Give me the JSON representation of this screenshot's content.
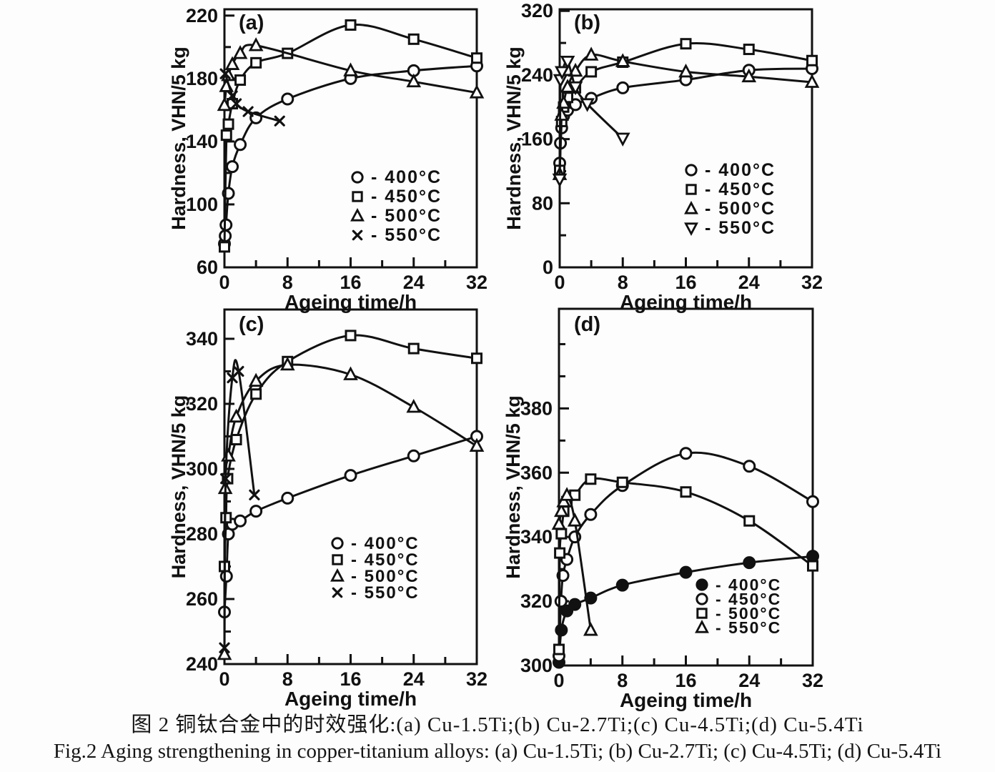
{
  "figure": {
    "caption_zh": "图 2  铜钛合金中的时效强化:(a) Cu-1.5Ti;(b) Cu-2.7Ti;(c) Cu-4.5Ti;(d) Cu-5.4Ti",
    "caption_en": "Fig.2 Aging strengthening in copper-titanium alloys: (a) Cu-1.5Ti; (b) Cu-2.7Ti; (c) Cu-4.5Ti; (d) Cu-5.4Ti"
  },
  "colors": {
    "ink": "#111111",
    "paper": "#fdfdfd"
  },
  "chart_data": [
    {
      "type": "line",
      "panel_letter": "(a)",
      "alloy": "Cu-1.5Ti",
      "xlabel": "Ageing time/h",
      "ylabel": "Hardness, VHN/5 kg",
      "xlim": [
        0,
        32
      ],
      "ylim": [
        60,
        224
      ],
      "xticks": [
        0,
        8,
        16,
        24,
        32
      ],
      "xticks_minor": [
        4,
        12,
        20,
        28
      ],
      "yticks": [
        60,
        100,
        140,
        180,
        220
      ],
      "yticks_minor": [
        80,
        120,
        160,
        200
      ],
      "grid": false,
      "legend_position": "inside lower right",
      "series": [
        {
          "name": "400°C",
          "marker": "circle",
          "legend_label": "- 400°C",
          "points": [
            [
              0,
              75
            ],
            [
              0.1,
              80
            ],
            [
              0.2,
              87
            ],
            [
              0.5,
              107
            ],
            [
              1,
              124
            ],
            [
              2,
              138
            ],
            [
              4,
              155
            ],
            [
              8,
              167
            ],
            [
              16,
              180
            ],
            [
              24,
              185
            ],
            [
              32,
              188
            ]
          ]
        },
        {
          "name": "450°C",
          "marker": "square",
          "legend_label": "- 450°C",
          "points": [
            [
              0,
              73
            ],
            [
              0.25,
              144
            ],
            [
              0.5,
              151
            ],
            [
              1,
              164
            ],
            [
              2,
              179
            ],
            [
              4,
              190
            ],
            [
              8,
              196
            ],
            [
              16,
              214
            ],
            [
              24,
              205
            ],
            [
              32,
              193
            ]
          ]
        },
        {
          "name": "500°C",
          "marker": "triangle",
          "legend_label": "- 500°C",
          "points": [
            [
              0,
              163
            ],
            [
              0.25,
              175
            ],
            [
              0.5,
              182
            ],
            [
              1,
              189
            ],
            [
              2,
              196
            ],
            [
              4,
              201
            ],
            [
              16,
              185
            ],
            [
              24,
              178
            ],
            [
              32,
              171
            ]
          ]
        },
        {
          "name": "550°C",
          "marker": "x-cross",
          "legend_label": "- 550°C",
          "points": [
            [
              0.1,
              183
            ],
            [
              1,
              169
            ],
            [
              1.5,
              164
            ],
            [
              3,
              159
            ],
            [
              7,
              153
            ]
          ]
        }
      ]
    },
    {
      "type": "line",
      "panel_letter": "(b)",
      "alloy": "Cu-2.7Ti",
      "xlabel": "Ageing time/h",
      "ylabel": "Hardness, VHN/5 kg",
      "xlim": [
        0,
        32
      ],
      "ylim": [
        0,
        322
      ],
      "xticks": [
        0,
        8,
        16,
        24,
        32
      ],
      "xticks_minor": [
        4,
        12,
        20,
        28
      ],
      "yticks": [
        0,
        80,
        160,
        240,
        320
      ],
      "yticks_minor": [
        40,
        120,
        200,
        280
      ],
      "grid": false,
      "legend_position": "inside middle right",
      "series": [
        {
          "name": "400°C",
          "marker": "circle",
          "legend_label": "- 400°C",
          "points": [
            [
              0,
              130
            ],
            [
              0.1,
              155
            ],
            [
              0.25,
              174
            ],
            [
              0.5,
              189
            ],
            [
              1,
              196
            ],
            [
              2,
              203
            ],
            [
              4,
              211
            ],
            [
              8,
              224
            ],
            [
              16,
              234
            ],
            [
              24,
              246
            ],
            [
              32,
              248
            ]
          ]
        },
        {
          "name": "450°C",
          "marker": "square",
          "legend_label": "- 450°C",
          "points": [
            [
              0,
              121
            ],
            [
              0.25,
              182
            ],
            [
              0.5,
              200
            ],
            [
              1,
              212
            ],
            [
              2,
              224
            ],
            [
              4,
              244
            ],
            [
              8,
              256
            ],
            [
              16,
              279
            ],
            [
              24,
              272
            ],
            [
              32,
              258
            ]
          ]
        },
        {
          "name": "500°C",
          "marker": "triangle",
          "legend_label": "- 500°C",
          "points": [
            [
              0,
              116
            ],
            [
              0.25,
              190
            ],
            [
              0.5,
              205
            ],
            [
              1,
              225
            ],
            [
              2,
              245
            ],
            [
              4,
              265
            ],
            [
              8,
              257
            ],
            [
              16,
              244
            ],
            [
              24,
              238
            ],
            [
              32,
              231
            ]
          ]
        },
        {
          "name": "550°C",
          "marker": "triangle-down",
          "legend_label": "- 550°C",
          "points": [
            [
              0,
              110
            ],
            [
              0.1,
              234
            ],
            [
              0.3,
              244
            ],
            [
              1,
              257
            ],
            [
              2,
              225
            ],
            [
              3.5,
              204
            ],
            [
              8,
              161
            ]
          ]
        }
      ]
    },
    {
      "type": "line",
      "panel_letter": "(c)",
      "alloy": "Cu-4.5Ti",
      "xlabel": "Ageing time/h",
      "ylabel": "Hardness, VHN/5 kg",
      "xlim": [
        0,
        32
      ],
      "ylim": [
        240,
        349
      ],
      "xticks": [
        0,
        8,
        16,
        24,
        32
      ],
      "xticks_minor": [
        4,
        12,
        20,
        28
      ],
      "yticks": [
        240,
        260,
        280,
        300,
        320,
        340
      ],
      "yticks_minor": [
        250,
        270,
        290,
        310,
        330
      ],
      "grid": false,
      "legend_position": "inside lower right",
      "series": [
        {
          "name": "400°C",
          "marker": "circle",
          "legend_label": "- 400°C",
          "points": [
            [
              0,
              256
            ],
            [
              0.25,
              267
            ],
            [
              0.5,
              280
            ],
            [
              1,
              283
            ],
            [
              2,
              284
            ],
            [
              4,
              287
            ],
            [
              8,
              291
            ],
            [
              16,
              298
            ],
            [
              24,
              304
            ],
            [
              32,
              310
            ]
          ]
        },
        {
          "name": "450°C",
          "marker": "square",
          "legend_label": "- 450°C",
          "points": [
            [
              0,
              270
            ],
            [
              0.2,
              285
            ],
            [
              0.4,
              297
            ],
            [
              1.5,
              309
            ],
            [
              4,
              323
            ],
            [
              8,
              333
            ],
            [
              16,
              341
            ],
            [
              24,
              337
            ],
            [
              32,
              334
            ]
          ]
        },
        {
          "name": "500°C",
          "marker": "triangle",
          "legend_label": "- 500°C",
          "points": [
            [
              0,
              243
            ],
            [
              0.1,
              294
            ],
            [
              0.5,
              304
            ],
            [
              1.5,
              316
            ],
            [
              4,
              327
            ],
            [
              8,
              332
            ],
            [
              16,
              329
            ],
            [
              24,
              319
            ],
            [
              32,
              307
            ]
          ]
        },
        {
          "name": "550°C",
          "marker": "x-cross",
          "legend_label": "- 550°C",
          "points": [
            [
              0,
              245
            ],
            [
              0.15,
              297
            ],
            [
              1,
              328
            ],
            [
              1.8,
              330
            ],
            [
              3.8,
              292
            ]
          ]
        }
      ]
    },
    {
      "type": "line",
      "panel_letter": "(d)",
      "alloy": "Cu-5.4Ti",
      "xlabel": "Ageing time/h",
      "ylabel": "Hardness, VHN/5 kg",
      "xlim": [
        0,
        32
      ],
      "ylim": [
        300,
        411
      ],
      "xticks": [
        0,
        8,
        16,
        24,
        32
      ],
      "xticks_minor": [
        4,
        12,
        20,
        28
      ],
      "yticks": [
        300,
        320,
        340,
        360,
        380
      ],
      "yticks_minor": [
        310,
        330,
        350,
        370,
        390,
        400
      ],
      "grid": false,
      "legend_position": "inside lower right",
      "series": [
        {
          "name": "400°C",
          "marker": "circle-filled",
          "legend_label": "- 400°C",
          "points": [
            [
              0,
              301
            ],
            [
              0.3,
              311
            ],
            [
              1,
              317
            ],
            [
              2,
              319
            ],
            [
              4,
              321
            ],
            [
              8,
              325
            ],
            [
              16,
              329
            ],
            [
              24,
              332
            ],
            [
              32,
              334
            ]
          ]
        },
        {
          "name": "450°C",
          "marker": "circle",
          "legend_label": "- 450°C",
          "points": [
            [
              0,
              303
            ],
            [
              0.25,
              320
            ],
            [
              0.5,
              328
            ],
            [
              1,
              333
            ],
            [
              2,
              340
            ],
            [
              4,
              347
            ],
            [
              8,
              356
            ],
            [
              16,
              366
            ],
            [
              24,
              362
            ],
            [
              32,
              351
            ]
          ]
        },
        {
          "name": "500°C",
          "marker": "square",
          "legend_label": "- 500°C",
          "points": [
            [
              0,
              305
            ],
            [
              0.1,
              335
            ],
            [
              0.3,
              341
            ],
            [
              0.6,
              348
            ],
            [
              1,
              351
            ],
            [
              2,
              353
            ],
            [
              4,
              358
            ],
            [
              8,
              357
            ],
            [
              16,
              354
            ],
            [
              24,
              345
            ],
            [
              32,
              331
            ]
          ]
        },
        {
          "name": "550°C",
          "marker": "triangle",
          "legend_label": "- 550°C",
          "points": [
            [
              0,
              344
            ],
            [
              0.3,
              348
            ],
            [
              0.6,
              351
            ],
            [
              1,
              353
            ],
            [
              2,
              345
            ],
            [
              4,
              311
            ]
          ]
        }
      ]
    }
  ]
}
